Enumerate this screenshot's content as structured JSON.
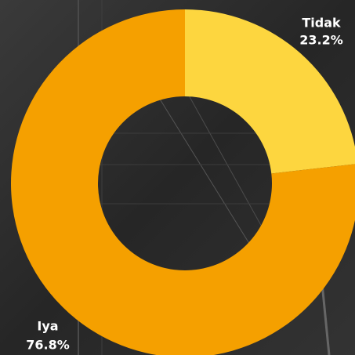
{
  "chart_data": {
    "type": "donut",
    "categories": [
      "Tidak",
      "Iya"
    ],
    "values": [
      23.2,
      76.8
    ],
    "value_labels": [
      "23.2%",
      "76.8%"
    ],
    "colors": [
      "#fdd63f",
      "#f5a000"
    ]
  }
}
